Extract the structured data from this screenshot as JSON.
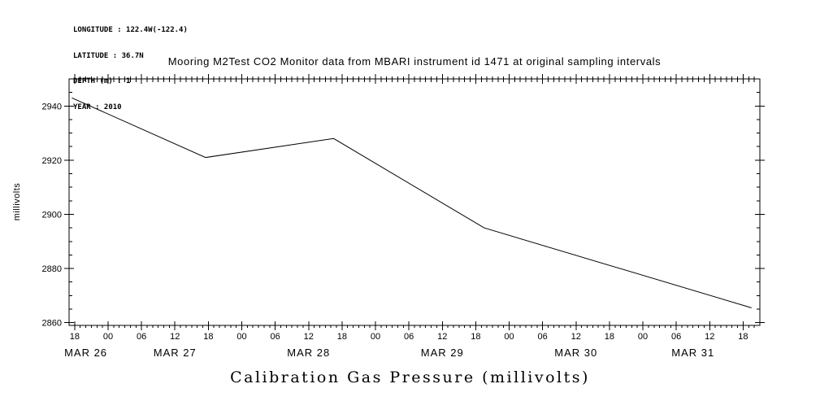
{
  "station": {
    "meta_lines": [
      "LONGITUDE : 122.4W(-122.4)",
      "LATITUDE : 36.7N",
      "DEPTH (m) : 1",
      "YEAR : 2010"
    ]
  },
  "chart_data": {
    "type": "line",
    "title": "Mooring M2Test CO2 Monitor data from MBARI instrument id 1471 at original sampling intervals",
    "xlabel": "Calibration Gas Pressure (millivolts)",
    "ylabel": "millivolts",
    "x_unit": "hours since 2010-03-26 18:00",
    "xlim": [
      -1,
      123
    ],
    "ylim": [
      2859,
      2950
    ],
    "yticks": [
      2860,
      2880,
      2900,
      2920,
      2940
    ],
    "y_minor_step": 5,
    "x_minor_step_hours": 1,
    "grid": false,
    "legend": false,
    "line_color": "#000000",
    "x_hour_ticks": [
      {
        "t": 0,
        "label": "18"
      },
      {
        "t": 6,
        "label": "00"
      },
      {
        "t": 12,
        "label": "06"
      },
      {
        "t": 18,
        "label": "12"
      },
      {
        "t": 24,
        "label": "18"
      },
      {
        "t": 30,
        "label": "00"
      },
      {
        "t": 36,
        "label": "06"
      },
      {
        "t": 42,
        "label": "12"
      },
      {
        "t": 48,
        "label": "18"
      },
      {
        "t": 54,
        "label": "00"
      },
      {
        "t": 60,
        "label": "06"
      },
      {
        "t": 66,
        "label": "12"
      },
      {
        "t": 72,
        "label": "18"
      },
      {
        "t": 78,
        "label": "00"
      },
      {
        "t": 84,
        "label": "06"
      },
      {
        "t": 90,
        "label": "12"
      },
      {
        "t": 96,
        "label": "18"
      },
      {
        "t": 102,
        "label": "00"
      },
      {
        "t": 108,
        "label": "06"
      },
      {
        "t": 114,
        "label": "12"
      },
      {
        "t": 120,
        "label": "18"
      }
    ],
    "date_labels": [
      {
        "t": 2,
        "label": "MAR 26"
      },
      {
        "t": 18,
        "label": "MAR 27"
      },
      {
        "t": 42,
        "label": "MAR 28"
      },
      {
        "t": 66,
        "label": "MAR 29"
      },
      {
        "t": 90,
        "label": "MAR 30"
      },
      {
        "t": 111,
        "label": "MAR 31"
      }
    ],
    "series": [
      {
        "name": "calibration gas pressure (millivolts)",
        "points": [
          [
            -0.5,
            2943
          ],
          [
            23.5,
            2921
          ],
          [
            46.5,
            2928
          ],
          [
            73.5,
            2895
          ],
          [
            121.5,
            2865.5
          ]
        ]
      }
    ]
  }
}
